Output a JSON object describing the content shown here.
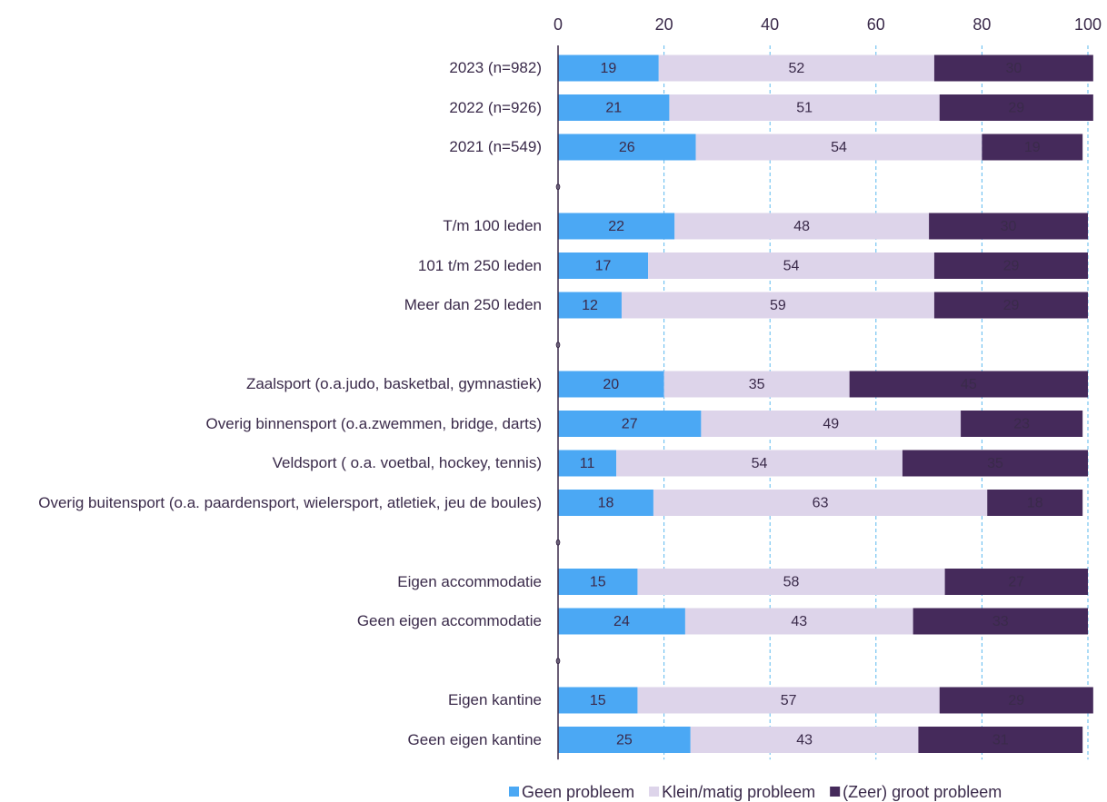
{
  "chart_data": {
    "type": "stacked_barh",
    "categories": [
      "2023 (n=982)",
      "2022 (n=926)",
      "2021 (n=549)",
      null,
      "T/m 100 leden",
      "101 t/m 250 leden",
      "Meer dan 250 leden",
      null,
      "Zaalsport (o.a.judo, basketbal, gymnastiek)",
      "Overig binnensport (o.a.zwemmen, bridge, darts)",
      "Veldsport ( o.a. voetbal, hockey, tennis)",
      "Overig buitensport (o.a. paardensport, wielersport, atletiek, jeu de boules)",
      null,
      "Eigen accommodatie",
      "Geen eigen accommodatie",
      null,
      "Eigen kantine",
      "Geen eigen kantine"
    ],
    "series": [
      {
        "name": "Geen probleem",
        "color": "#4ba8f4",
        "label_color": "#ffffff",
        "values": [
          19,
          21,
          26,
          0,
          22,
          17,
          12,
          0,
          20,
          27,
          11,
          18,
          0,
          15,
          24,
          0,
          15,
          25
        ]
      },
      {
        "name": "Klein/matig probleem",
        "color": "#ddd4ea",
        "label_color": "#3a2a4a",
        "values": [
          52,
          51,
          54,
          0,
          48,
          54,
          59,
          0,
          35,
          49,
          54,
          63,
          0,
          58,
          43,
          0,
          57,
          43
        ]
      },
      {
        "name": "(Zeer) groot probleem",
        "color": "#452a5b",
        "label_color": "#ffffff",
        "values": [
          30,
          29,
          19,
          0,
          30,
          29,
          29,
          0,
          45,
          23,
          35,
          18,
          0,
          27,
          33,
          0,
          29,
          31
        ]
      }
    ],
    "xlim": [
      0,
      100
    ],
    "xticks": [
      0,
      20,
      40,
      60,
      80,
      100
    ],
    "grid": true,
    "grid_color": "#5bb8ee",
    "legend": "bottom"
  }
}
